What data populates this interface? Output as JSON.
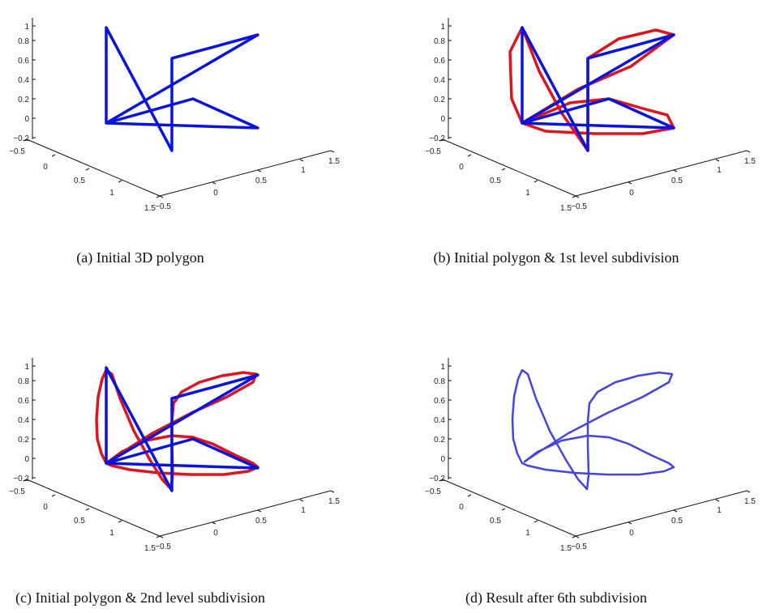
{
  "colors": {
    "polygon": "#0a14e0",
    "subdivision": "#e0141e",
    "result": "#4343e6"
  },
  "chart_data": [
    {
      "type": "line3d",
      "caption": "(a) Initial 3D polygon",
      "z_ticks": [
        "1",
        "0.8",
        "0.6",
        "0.4",
        "0.2",
        "0",
        "−0.2"
      ],
      "x_ticks": [
        "−0.5",
        "0",
        "0.5",
        "1",
        "1.5"
      ],
      "y_ticks": [
        "1.5",
        "1",
        "0.5",
        "0",
        "−0.5"
      ],
      "series": [
        {
          "role": "polygon",
          "color_key": "polygon",
          "points": [
            [
              131,
              152
            ],
            [
              131,
              34
            ],
            [
              212,
              186
            ],
            [
              212,
              72
            ],
            [
              318,
              43
            ],
            [
              131,
              152
            ],
            [
              238,
              122
            ],
            [
              318,
              158
            ],
            [
              131,
              152
            ]
          ]
        }
      ]
    },
    {
      "type": "line3d",
      "caption": "(b) Initial polygon & 1st level subdivision",
      "z_ticks": [
        "1",
        "0.8",
        "0.6",
        "0.4",
        "0.2",
        "0",
        "−0.2"
      ],
      "x_ticks": [
        "−0.5",
        "0",
        "0.5",
        "1",
        "1.5"
      ],
      "y_ticks": [
        "1.5",
        "1",
        "0.5",
        "0",
        "−0.5"
      ],
      "series": [
        {
          "role": "subdivision",
          "color_key": "subdivision",
          "points": [
            [
              131,
              152
            ],
            [
              118,
              122
            ],
            [
              116,
              64
            ],
            [
              131,
              34
            ],
            [
              152,
              88
            ],
            [
              180,
              140
            ],
            [
              212,
              186
            ],
            [
              212,
              120
            ],
            [
              212,
              72
            ],
            [
              250,
              48
            ],
            [
              296,
              37
            ],
            [
              318,
              43
            ],
            [
              265,
              82
            ],
            [
              200,
              110
            ],
            [
              131,
              152
            ],
            [
              190,
              127
            ],
            [
              238,
              122
            ],
            [
              280,
              134
            ],
            [
              310,
              142
            ],
            [
              318,
              158
            ],
            [
              280,
              165
            ],
            [
              220,
              165
            ],
            [
              160,
              162
            ],
            [
              131,
              152
            ]
          ]
        },
        {
          "role": "polygon",
          "color_key": "polygon",
          "points": [
            [
              131,
              152
            ],
            [
              131,
              34
            ],
            [
              212,
              186
            ],
            [
              212,
              72
            ],
            [
              318,
              43
            ],
            [
              131,
              152
            ],
            [
              238,
              122
            ],
            [
              318,
              158
            ],
            [
              131,
              152
            ]
          ]
        }
      ]
    },
    {
      "type": "line3d",
      "caption": "(c) Initial polygon & 2nd level subdivision",
      "z_ticks": [
        "1",
        "0.8",
        "0.6",
        "0.4",
        "0.2",
        "0",
        "−0.2"
      ],
      "x_ticks": [
        "−0.5",
        "0",
        "0.5",
        "1",
        "1.5"
      ],
      "y_ticks": [
        "1.5",
        "1",
        "0.5",
        "0",
        "−0.5"
      ],
      "series": [
        {
          "role": "subdivision",
          "color_key": "subdivision",
          "points": [
            [
              131,
              152
            ],
            [
              125,
              140
            ],
            [
              120,
              122
            ],
            [
              119,
              98
            ],
            [
              121,
              70
            ],
            [
              126,
              48
            ],
            [
              131,
              37
            ],
            [
              138,
              42
            ],
            [
              148,
              72
            ],
            [
              165,
              112
            ],
            [
              185,
              148
            ],
            [
              200,
              172
            ],
            [
              211,
              184
            ],
            [
              213,
              166
            ],
            [
              212,
              130
            ],
            [
              212,
              100
            ],
            [
              214,
              78
            ],
            [
              224,
              64
            ],
            [
              246,
              52
            ],
            [
              274,
              44
            ],
            [
              300,
              40
            ],
            [
              316,
              42
            ],
            [
              312,
              52
            ],
            [
              280,
              70
            ],
            [
              236,
              90
            ],
            [
              188,
              115
            ],
            [
              152,
              138
            ],
            [
              134,
              150
            ],
            [
              150,
              138
            ],
            [
              180,
              124
            ],
            [
              212,
              118
            ],
            [
              238,
              120
            ],
            [
              262,
              128
            ],
            [
              290,
              142
            ],
            [
              312,
              152
            ],
            [
              318,
              157
            ],
            [
              306,
              162
            ],
            [
              276,
              166
            ],
            [
              236,
              166
            ],
            [
              196,
              164
            ],
            [
              160,
              160
            ],
            [
              138,
              155
            ],
            [
              131,
              152
            ]
          ]
        },
        {
          "role": "polygon",
          "color_key": "polygon",
          "points": [
            [
              131,
              152
            ],
            [
              131,
              34
            ],
            [
              212,
              186
            ],
            [
              212,
              72
            ],
            [
              318,
              43
            ],
            [
              131,
              152
            ],
            [
              238,
              122
            ],
            [
              318,
              158
            ],
            [
              131,
              152
            ]
          ]
        }
      ]
    },
    {
      "type": "line3d",
      "caption": "(d) Result after 6th subdivision",
      "z_ticks": [
        "1",
        "0.8",
        "0.6",
        "0.4",
        "0.2",
        "0",
        "−0.2"
      ],
      "x_ticks": [
        "−0.5",
        "0",
        "0.5",
        "1",
        "1.5"
      ],
      "y_ticks": [
        "1.5",
        "1",
        "0.5",
        "0",
        "−0.5"
      ],
      "series": [
        {
          "role": "result",
          "color_key": "result",
          "points": [
            [
              131,
              152
            ],
            [
              125,
              140
            ],
            [
              120,
              122
            ],
            [
              119,
              98
            ],
            [
              121,
              70
            ],
            [
              126,
              48
            ],
            [
              131,
              37
            ],
            [
              138,
              42
            ],
            [
              148,
              72
            ],
            [
              165,
              112
            ],
            [
              185,
              148
            ],
            [
              200,
              172
            ],
            [
              211,
              184
            ],
            [
              213,
              166
            ],
            [
              212,
              130
            ],
            [
              212,
              100
            ],
            [
              214,
              78
            ],
            [
              224,
              64
            ],
            [
              246,
              52
            ],
            [
              274,
              44
            ],
            [
              300,
              40
            ],
            [
              316,
              42
            ],
            [
              312,
              52
            ],
            [
              280,
              70
            ],
            [
              236,
              90
            ],
            [
              188,
              115
            ],
            [
              152,
              138
            ],
            [
              134,
              150
            ],
            [
              150,
              138
            ],
            [
              180,
              124
            ],
            [
              212,
              118
            ],
            [
              238,
              120
            ],
            [
              262,
              128
            ],
            [
              290,
              142
            ],
            [
              312,
              152
            ],
            [
              318,
              157
            ],
            [
              306,
              162
            ],
            [
              276,
              166
            ],
            [
              236,
              166
            ],
            [
              196,
              164
            ],
            [
              160,
              160
            ],
            [
              138,
              155
            ],
            [
              131,
              152
            ]
          ]
        }
      ]
    }
  ]
}
